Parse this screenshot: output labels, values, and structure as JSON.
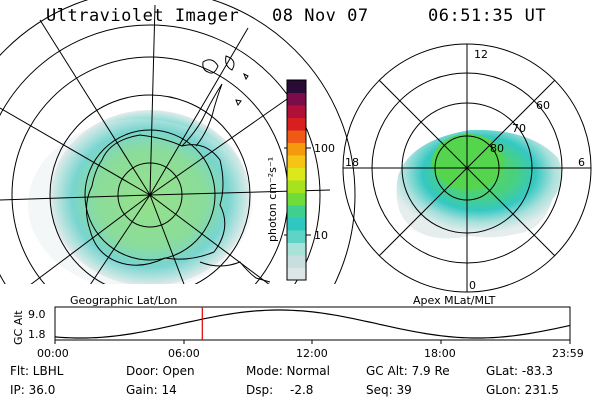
{
  "header": {
    "instrument": "Ultraviolet Imager",
    "date": "08 Nov 07",
    "time": "06:51:35 UT"
  },
  "left_map": {
    "caption": "Geographic Lat/Lon"
  },
  "right_map": {
    "caption": "Apex MLat/MLT",
    "mlt_labels": {
      "top": "12",
      "left": "18",
      "right": "6",
      "bottom": "0"
    },
    "mlat_labels": [
      "60",
      "70",
      "80"
    ]
  },
  "colorbar": {
    "unit_label": "photon cm⁻²s⁻¹",
    "ticks": [
      {
        "label": "100",
        "value": 100
      },
      {
        "label": "10",
        "value": 10
      }
    ],
    "colors": [
      "#dde6e6",
      "#c9dede",
      "#a8e2d8",
      "#5fd3c6",
      "#2fc8c0",
      "#3fd090",
      "#6fdc3a",
      "#a6e21e",
      "#dce81c",
      "#f6c414",
      "#f59a0c",
      "#ef5a14",
      "#d81e1e",
      "#b01038",
      "#7a0c4a",
      "#2a0a36"
    ]
  },
  "orbit_plot": {
    "axis_label": "GC Alt",
    "y_ticks": [
      "9.0",
      "1.8"
    ],
    "x_ticks": [
      "00:00",
      "06:00",
      "12:00",
      "18:00",
      "23:59"
    ],
    "current_time_fraction": 0.286,
    "marker_color": "#dd0000"
  },
  "info": {
    "filter": "Flt: LBHL",
    "ip": "IP: 36.0",
    "door": "Door: Open",
    "gain": "Gain: 14",
    "mode": "Mode: Normal",
    "dsp_label": "Dsp:",
    "dsp_value": "-2.8",
    "gc_alt": "GC Alt: 7.9 Re",
    "seq": "Seq: 39",
    "glat": "GLat: -83.3",
    "glon": "GLon: 231.5"
  }
}
